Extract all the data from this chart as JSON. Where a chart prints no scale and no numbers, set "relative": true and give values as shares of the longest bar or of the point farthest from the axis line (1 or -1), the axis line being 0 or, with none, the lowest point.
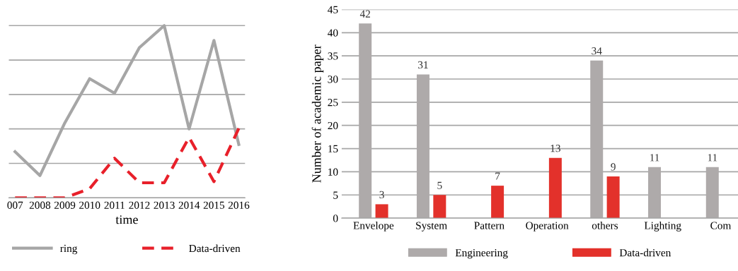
{
  "chart_data": [
    {
      "type": "line",
      "xlabel": "time",
      "relative": true,
      "grid": "y",
      "legend": "bottom",
      "marker": "none",
      "categories": [
        "007",
        "2008",
        "2009",
        "2010",
        "2011",
        "2012",
        "2013",
        "2014",
        "2015",
        "2016"
      ],
      "series": [
        {
          "name": "ring",
          "color": "#a6a6a6",
          "line_style": "solid",
          "values": [
            0.268,
            0.129,
            0.435,
            0.692,
            0.608,
            0.872,
            1,
            0.4,
            0.914,
            0.31
          ]
        },
        {
          "name": "Data-driven",
          "color": "#e8202a",
          "line_style": "dashed",
          "values": [
            0,
            0,
            0,
            0.053,
            0.23,
            0.0875,
            0.0875,
            0.351,
            0.094,
            0.403
          ]
        }
      ]
    },
    {
      "type": "bar",
      "ylabel": "Number of academic paper",
      "ylim": [
        0,
        45
      ],
      "yticks": [
        0,
        5,
        10,
        15,
        20,
        25,
        30,
        35,
        40,
        45
      ],
      "grid": "y",
      "legend": "bottom",
      "data_labels": true,
      "categories": [
        "Envelope",
        "System",
        "Pattern",
        "Operation",
        "others",
        "Lighting",
        "Com"
      ],
      "series": [
        {
          "name": "Engineering",
          "color": "#aeaaaa",
          "values": [
            42,
            31,
            null,
            null,
            34,
            11,
            11
          ]
        },
        {
          "name": "Data-driven",
          "color": "#e3312b",
          "values": [
            3,
            5,
            7,
            13,
            9,
            null,
            null
          ]
        }
      ]
    }
  ]
}
